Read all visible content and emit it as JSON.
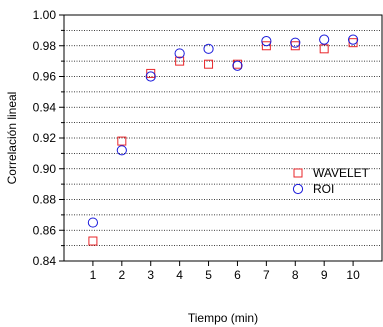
{
  "chart_data": {
    "type": "scatter",
    "xlabel": "Tiempo (min)",
    "ylabel": "Correlación lineal",
    "xlim": [
      0,
      11
    ],
    "ylim": [
      0.84,
      1.0
    ],
    "x_ticks": [
      1,
      2,
      3,
      4,
      5,
      6,
      7,
      8,
      9,
      10
    ],
    "x_tick_labels": [
      "1",
      "2",
      "3",
      "4",
      "5",
      "6",
      "7",
      "8",
      "9",
      "10"
    ],
    "y_ticks": [
      0.84,
      0.86,
      0.88,
      0.9,
      0.92,
      0.94,
      0.96,
      0.98,
      1.0
    ],
    "y_tick_labels": [
      "0.84",
      "0.86",
      "0.88",
      "0.90",
      "0.92",
      "0.94",
      "0.96",
      "0.98",
      "1.00"
    ],
    "grid": "horizontal-dotted",
    "legend_position": "right",
    "series": [
      {
        "name": "WAVELET",
        "marker": "square",
        "color": "#e8262a",
        "x": [
          1,
          2,
          3,
          4,
          5,
          6,
          7,
          8,
          9,
          10
        ],
        "y": [
          0.853,
          0.918,
          0.962,
          0.97,
          0.968,
          0.968,
          0.98,
          0.98,
          0.978,
          0.982
        ]
      },
      {
        "name": "ROI",
        "marker": "circle",
        "color": "#1a1adb",
        "x": [
          1,
          2,
          3,
          4,
          5,
          6,
          7,
          8,
          9,
          10
        ],
        "y": [
          0.865,
          0.912,
          0.96,
          0.975,
          0.978,
          0.967,
          0.983,
          0.982,
          0.984,
          0.984
        ]
      }
    ]
  }
}
